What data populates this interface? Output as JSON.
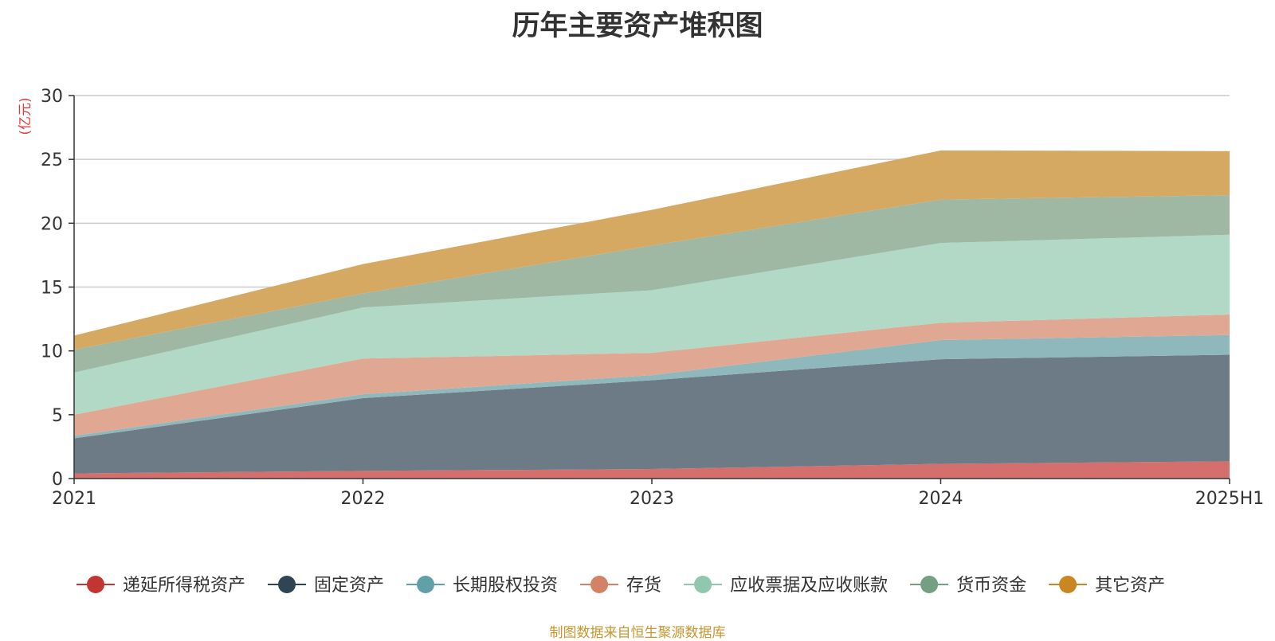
{
  "chart_data": {
    "type": "area",
    "stacked": true,
    "title": "历年主要资产堆积图",
    "unit_label": "(亿元)",
    "categories": [
      "2021",
      "2022",
      "2023",
      "2024",
      "2025H1"
    ],
    "ylim": [
      0,
      30
    ],
    "yticks": [
      0,
      5,
      10,
      15,
      20,
      25,
      30
    ],
    "grid": true,
    "legend_position": "bottom",
    "series": [
      {
        "name": "递延所得税资产",
        "color": "#c23531",
        "fill": "#d46f6d",
        "values": [
          0.4,
          0.6,
          0.75,
          1.15,
          1.35
        ]
      },
      {
        "name": "固定资产",
        "color": "#2f4554",
        "fill": "#6d7b86",
        "values": [
          2.75,
          5.7,
          6.95,
          8.2,
          8.35
        ]
      },
      {
        "name": "长期股权投资",
        "color": "#61a0a8",
        "fill": "#8fb8bd",
        "values": [
          0.2,
          0.3,
          0.4,
          1.5,
          1.55
        ]
      },
      {
        "name": "存货",
        "color": "#d48265",
        "fill": "#e0a893",
        "values": [
          1.65,
          2.8,
          1.75,
          1.35,
          1.6
        ]
      },
      {
        "name": "应收票据及应收账款",
        "color": "#91c7ae",
        "fill": "#b2d8c6",
        "values": [
          3.3,
          4.0,
          4.9,
          6.25,
          6.25
        ]
      },
      {
        "name": "货币资金",
        "color": "#749f83",
        "fill": "#9eb8a4",
        "values": [
          1.8,
          1.1,
          3.5,
          3.4,
          3.1
        ]
      },
      {
        "name": "其它资产",
        "color": "#ca8622",
        "fill": "#d6a962",
        "values": [
          1.1,
          2.3,
          2.8,
          3.85,
          3.45
        ]
      }
    ]
  },
  "source_note": "制图数据来自恒生聚源数据库"
}
